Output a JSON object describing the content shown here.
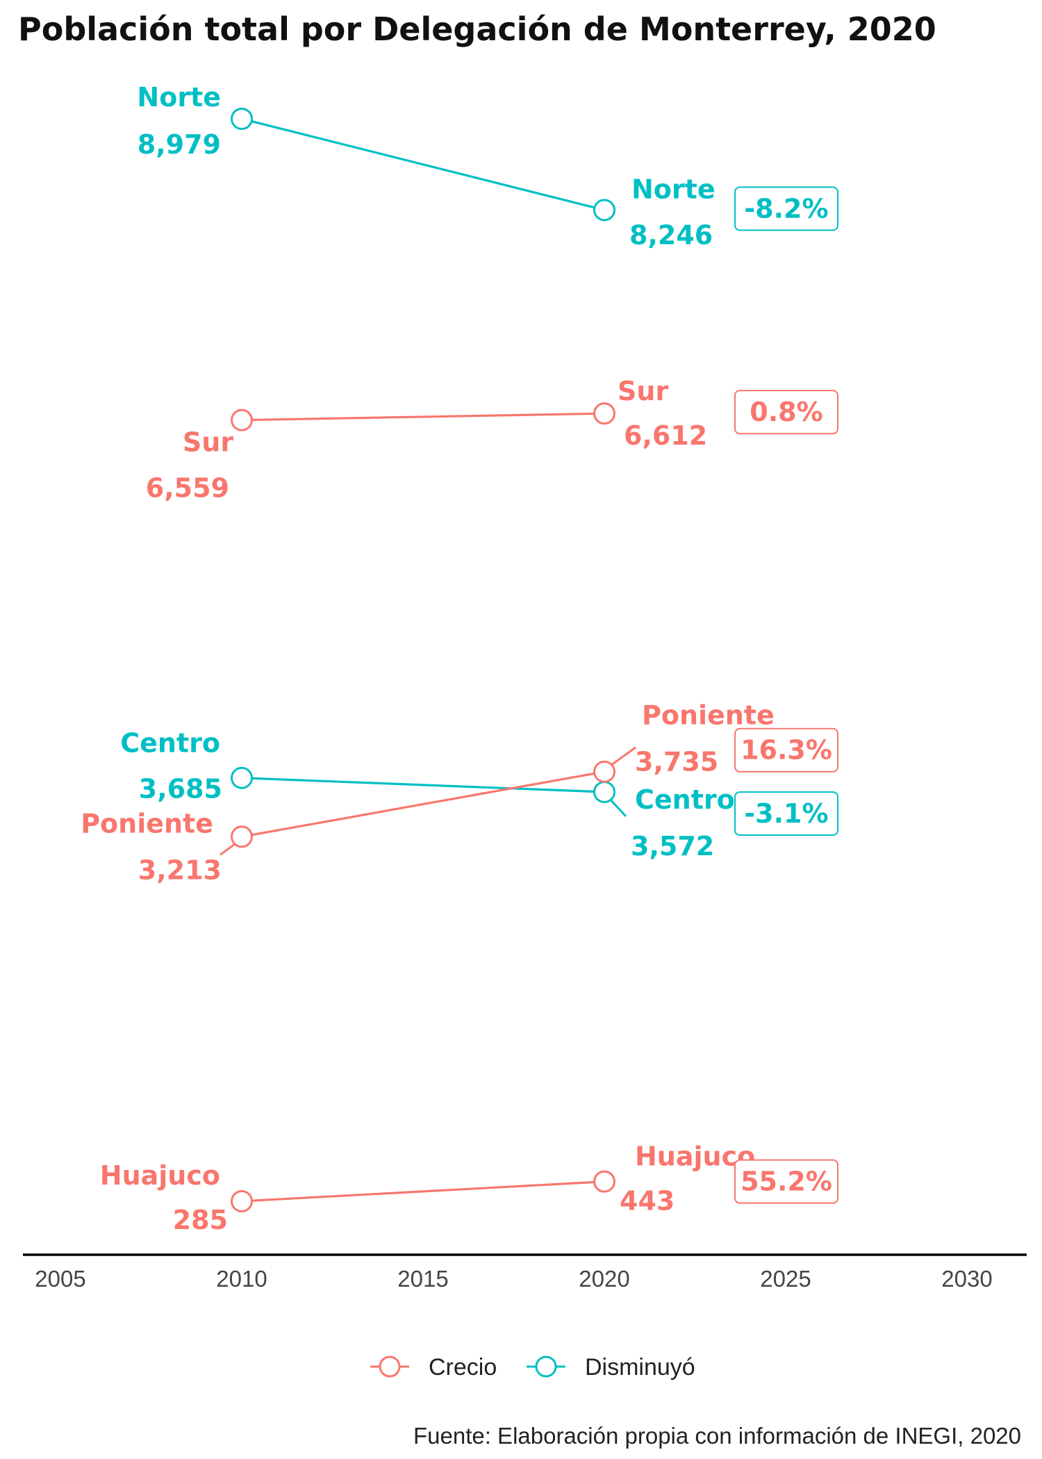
{
  "chart_data": {
    "type": "line",
    "title": "Población total por Delegación de Monterrey, 2020",
    "caption": "Fuente: Elaboración propia con información de INEGI, 2020",
    "x_ticks": [
      2005,
      2010,
      2015,
      2020,
      2025,
      2030
    ],
    "xlim": [
      2005,
      2030
    ],
    "grid": false,
    "legend_position": "bottom",
    "legend": [
      {
        "label": "Crecio",
        "color": "#F8766D"
      },
      {
        "label": "Disminuyó",
        "color": "#00BFC4"
      }
    ],
    "series": [
      {
        "name": "Norte",
        "group": "Disminuyó",
        "color": "#00BFC4",
        "points": [
          {
            "x": 2010,
            "y": 8979,
            "label": "8,979"
          },
          {
            "x": 2020,
            "y": 8246,
            "label": "8,246"
          }
        ],
        "change_label": "-8.2%"
      },
      {
        "name": "Sur",
        "group": "Crecio",
        "color": "#F8766D",
        "points": [
          {
            "x": 2010,
            "y": 6559,
            "label": "6,559"
          },
          {
            "x": 2020,
            "y": 6612,
            "label": "6,612"
          }
        ],
        "change_label": "0.8%"
      },
      {
        "name": "Centro",
        "group": "Disminuyó",
        "color": "#00BFC4",
        "points": [
          {
            "x": 2010,
            "y": 3685,
            "label": "3,685"
          },
          {
            "x": 2020,
            "y": 3572,
            "label": "3,572"
          }
        ],
        "change_label": "-3.1%"
      },
      {
        "name": "Poniente",
        "group": "Crecio",
        "color": "#F8766D",
        "points": [
          {
            "x": 2010,
            "y": 3213,
            "label": "3,213"
          },
          {
            "x": 2020,
            "y": 3735,
            "label": "3,735"
          }
        ],
        "change_label": "16.3%"
      },
      {
        "name": "Huajuco",
        "group": "Crecio",
        "color": "#F8766D",
        "points": [
          {
            "x": 2010,
            "y": 285,
            "label": "285"
          },
          {
            "x": 2020,
            "y": 443,
            "label": "443"
          }
        ],
        "change_label": "55.2%"
      }
    ]
  }
}
